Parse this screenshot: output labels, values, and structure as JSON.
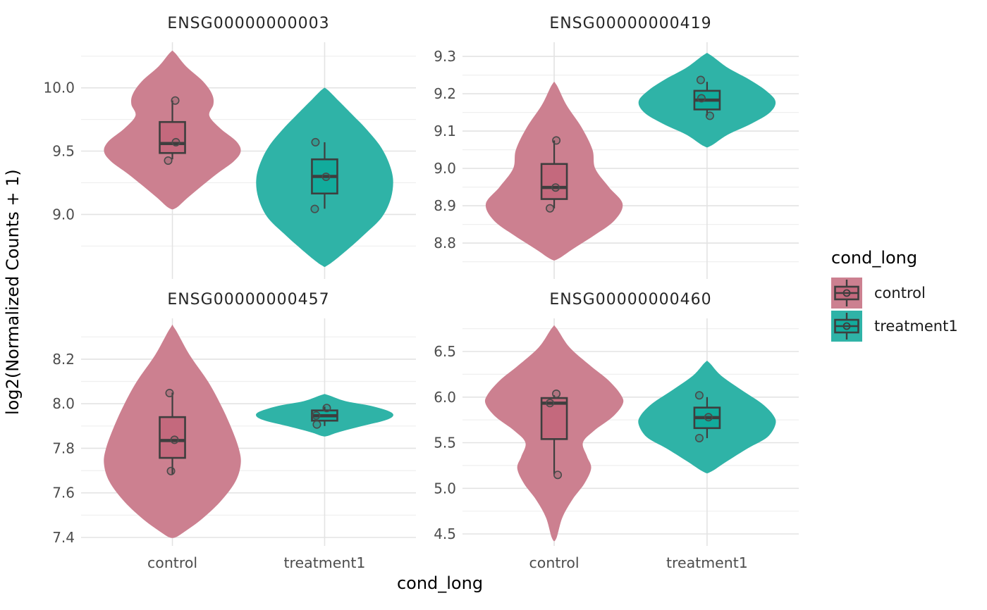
{
  "figure": {
    "y_axis_title": "log2(Normalized Counts + 1)",
    "x_axis_title": "cond_long"
  },
  "legend": {
    "title": "cond_long",
    "position": "right",
    "items": [
      {
        "label": "control",
        "color": "#CC8090",
        "box_color": "#C4697D"
      },
      {
        "label": "treatment1",
        "color": "#2FB3A7",
        "box_color": "#12AB9C"
      }
    ]
  },
  "colors": {
    "background": "#FFFFFF",
    "grid_major": "#E3E3E3",
    "grid_minor": "#EFEFEF",
    "outline": "#3E3E3E",
    "tick_label": "#4D4D4D",
    "facet_title": "#262626",
    "axis_title": "#000000"
  },
  "chart_data": {
    "type": "violin",
    "overlay": "boxplot+points",
    "facet_by": "gene",
    "grid": true,
    "legend_position": "right",
    "x_categories": [
      "control",
      "treatment1"
    ],
    "panels": [
      {
        "title": "ENSG00000000003",
        "y_ticks": [
          9.0,
          9.5,
          10.0
        ],
        "y_domain": [
          8.49,
          10.36
        ],
        "groups": [
          {
            "category": "control",
            "violin": [
              [
                10.28,
                0.03
              ],
              [
                10.17,
                0.2
              ],
              [
                10.05,
                0.45
              ],
              [
                9.95,
                0.58
              ],
              [
                9.87,
                0.6
              ],
              [
                9.78,
                0.54
              ],
              [
                9.68,
                0.7
              ],
              [
                9.58,
                0.93
              ],
              [
                9.5,
                1.0
              ],
              [
                9.42,
                0.9
              ],
              [
                9.32,
                0.65
              ],
              [
                9.22,
                0.42
              ],
              [
                9.13,
                0.22
              ],
              [
                9.05,
                0.05
              ]
            ],
            "box": {
              "q1": 9.485,
              "median": 9.56,
              "q3": 9.73,
              "whisker_low": 9.435,
              "whisker_high": 9.9
            },
            "points": [
              {
                "value": 9.9,
                "dx": 4
              },
              {
                "value": 9.57,
                "dx": 5
              },
              {
                "value": 9.425,
                "dx": -6
              }
            ]
          },
          {
            "category": "treatment1",
            "violin": [
              [
                9.99,
                0.03
              ],
              [
                9.9,
                0.2
              ],
              [
                9.78,
                0.42
              ],
              [
                9.68,
                0.6
              ],
              [
                9.55,
                0.8
              ],
              [
                9.42,
                0.93
              ],
              [
                9.28,
                1.0
              ],
              [
                9.13,
                0.97
              ],
              [
                8.98,
                0.84
              ],
              [
                8.85,
                0.6
              ],
              [
                8.72,
                0.33
              ],
              [
                8.6,
                0.05
              ]
            ],
            "box": {
              "q1": 9.165,
              "median": 9.3,
              "q3": 9.435,
              "whisker_low": 9.045,
              "whisker_high": 9.57
            },
            "points": [
              {
                "value": 9.57,
                "dx": -13
              },
              {
                "value": 9.297,
                "dx": 2
              },
              {
                "value": 9.043,
                "dx": -14
              }
            ]
          }
        ]
      },
      {
        "title": "ENSG00000000419",
        "y_ticks": [
          8.8,
          8.9,
          9.0,
          9.1,
          9.2,
          9.3
        ],
        "y_domain": [
          8.704,
          9.338
        ],
        "groups": [
          {
            "category": "control",
            "violin": [
              [
                9.225,
                0.03
              ],
              [
                9.17,
                0.18
              ],
              [
                9.11,
                0.4
              ],
              [
                9.05,
                0.56
              ],
              [
                9.0,
                0.6
              ],
              [
                8.95,
                0.8
              ],
              [
                8.905,
                1.0
              ],
              [
                8.86,
                0.88
              ],
              [
                8.82,
                0.58
              ],
              [
                8.785,
                0.28
              ],
              [
                8.757,
                0.05
              ]
            ],
            "box": {
              "q1": 8.918,
              "median": 8.949,
              "q3": 9.012,
              "whisker_low": 8.893,
              "whisker_high": 9.075
            },
            "points": [
              {
                "value": 9.075,
                "dx": 3
              },
              {
                "value": 8.949,
                "dx": 2
              },
              {
                "value": 8.893,
                "dx": -6
              }
            ]
          },
          {
            "category": "treatment1",
            "violin": [
              [
                9.305,
                0.04
              ],
              [
                9.27,
                0.3
              ],
              [
                9.24,
                0.6
              ],
              [
                9.21,
                0.85
              ],
              [
                9.18,
                1.0
              ],
              [
                9.15,
                0.92
              ],
              [
                9.12,
                0.65
              ],
              [
                9.09,
                0.3
              ],
              [
                9.06,
                0.05
              ]
            ],
            "box": {
              "q1": 9.158,
              "median": 9.183,
              "q3": 9.208,
              "whisker_low": 9.142,
              "whisker_high": 9.232
            },
            "points": [
              {
                "value": 9.237,
                "dx": -9
              },
              {
                "value": 9.188,
                "dx": -8
              },
              {
                "value": 9.141,
                "dx": 4
              }
            ]
          }
        ]
      },
      {
        "title": "ENSG00000000457",
        "y_ticks": [
          7.4,
          7.6,
          7.8,
          8.0,
          8.2
        ],
        "y_domain": [
          7.362,
          8.383
        ],
        "groups": [
          {
            "category": "control",
            "violin": [
              [
                8.34,
                0.03
              ],
              [
                8.22,
                0.25
              ],
              [
                8.1,
                0.52
              ],
              [
                8.0,
                0.7
              ],
              [
                7.9,
                0.85
              ],
              [
                7.8,
                0.97
              ],
              [
                7.73,
                1.0
              ],
              [
                7.65,
                0.92
              ],
              [
                7.56,
                0.7
              ],
              [
                7.48,
                0.42
              ],
              [
                7.42,
                0.15
              ],
              [
                7.4,
                0.04
              ]
            ],
            "box": {
              "q1": 7.757,
              "median": 7.835,
              "q3": 7.94,
              "whisker_low": 7.684,
              "whisker_high": 8.05
            },
            "points": [
              {
                "value": 8.048,
                "dx": -4
              },
              {
                "value": 7.838,
                "dx": 3
              },
              {
                "value": 7.698,
                "dx": -2
              }
            ]
          },
          {
            "category": "treatment1",
            "violin": [
              [
                8.04,
                0.04
              ],
              [
                8.012,
                0.3
              ],
              [
                7.99,
                0.68
              ],
              [
                7.965,
                0.95
              ],
              [
                7.945,
                1.0
              ],
              [
                7.925,
                0.88
              ],
              [
                7.9,
                0.55
              ],
              [
                7.872,
                0.2
              ],
              [
                7.855,
                0.04
              ]
            ],
            "box": {
              "q1": 7.924,
              "median": 7.946,
              "q3": 7.97,
              "whisker_low": 7.9,
              "whisker_high": 7.987
            },
            "points": [
              {
                "value": 7.981,
                "dx": 3
              },
              {
                "value": 7.947,
                "dx": -12
              },
              {
                "value": 7.907,
                "dx": -11
              }
            ]
          }
        ]
      },
      {
        "title": "ENSG00000000460",
        "y_ticks": [
          4.5,
          5.0,
          5.5,
          6.0,
          6.5
        ],
        "y_domain": [
          4.369,
          6.863
        ],
        "groups": [
          {
            "category": "control",
            "violin": [
              [
                6.76,
                0.03
              ],
              [
                6.55,
                0.22
              ],
              [
                6.35,
                0.52
              ],
              [
                6.18,
                0.8
              ],
              [
                6.02,
                0.98
              ],
              [
                5.92,
                1.0
              ],
              [
                5.78,
                0.85
              ],
              [
                5.63,
                0.58
              ],
              [
                5.5,
                0.42
              ],
              [
                5.35,
                0.48
              ],
              [
                5.22,
                0.54
              ],
              [
                5.05,
                0.44
              ],
              [
                4.88,
                0.27
              ],
              [
                4.68,
                0.12
              ],
              [
                4.45,
                0.03
              ]
            ],
            "box": {
              "q1": 5.54,
              "median": 5.934,
              "q3": 5.99,
              "whisker_low": 5.154,
              "whisker_high": 6.02
            },
            "points": [
              {
                "value": 6.037,
                "dx": 3
              },
              {
                "value": 5.934,
                "dx": -6
              },
              {
                "value": 5.147,
                "dx": 5
              }
            ]
          },
          {
            "category": "treatment1",
            "violin": [
              [
                6.38,
                0.03
              ],
              [
                6.24,
                0.2
              ],
              [
                6.08,
                0.5
              ],
              [
                5.93,
                0.8
              ],
              [
                5.8,
                0.97
              ],
              [
                5.7,
                1.0
              ],
              [
                5.56,
                0.88
              ],
              [
                5.44,
                0.6
              ],
              [
                5.3,
                0.3
              ],
              [
                5.18,
                0.05
              ]
            ],
            "box": {
              "q1": 5.66,
              "median": 5.775,
              "q3": 5.885,
              "whisker_low": 5.55,
              "whisker_high": 6.0
            },
            "points": [
              {
                "value": 6.02,
                "dx": -11
              },
              {
                "value": 5.78,
                "dx": 2
              },
              {
                "value": 5.55,
                "dx": -11
              }
            ]
          }
        ]
      }
    ]
  }
}
